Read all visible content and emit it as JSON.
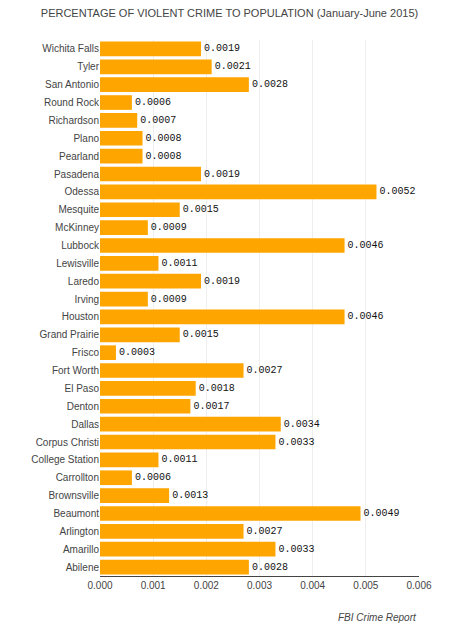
{
  "chart_data": {
    "type": "bar",
    "orientation": "horizontal",
    "title": "PERCENTAGE OF VIOLENT CRIME TO POPULATION (January-June 2015)",
    "annotations": [
      "FBI Crime Report"
    ],
    "categories": [
      "Abilene",
      "Amarillo",
      "Arlington",
      "Beaumont",
      "Brownsville",
      "Carrollton",
      "College Station",
      "Corpus Christi",
      "Dallas",
      "Denton",
      "El Paso",
      "Fort Worth",
      "Frisco",
      "Grand Prairie",
      "Houston",
      "Irving",
      "Laredo",
      "Lewisville",
      "Lubbock",
      "McKinney",
      "Mesquite",
      "Odessa",
      "Pasadena",
      "Pearland",
      "Plano",
      "Richardson",
      "Round Rock",
      "San Antonio",
      "Tyler",
      "Wichita Falls"
    ],
    "values": [
      0.0028,
      0.0033,
      0.0027,
      0.0049,
      0.0013,
      0.0006,
      0.0011,
      0.0033,
      0.0034,
      0.0017,
      0.0018,
      0.0027,
      0.0003,
      0.0015,
      0.0046,
      0.0009,
      0.0019,
      0.0011,
      0.0046,
      0.0009,
      0.0015,
      0.0052,
      0.0019,
      0.0008,
      0.0008,
      0.0007,
      0.0006,
      0.0028,
      0.0021,
      0.0019
    ],
    "color": "#FFA500",
    "data_labels": true,
    "xlim": [
      0,
      0.006
    ],
    "xticks": [
      {
        "value": 0,
        "label": "0.000"
      },
      0.001,
      0.002,
      0.003,
      0.004,
      0.005,
      0.006
    ],
    "grid": true
  }
}
